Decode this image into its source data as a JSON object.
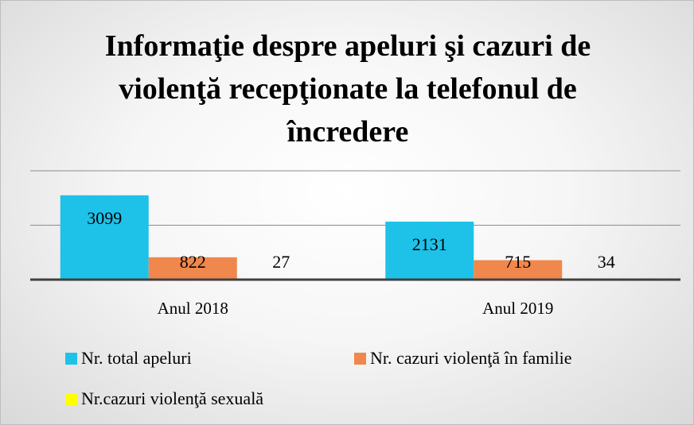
{
  "chart_data": {
    "type": "bar",
    "title": "Informaţie despre apeluri şi cazuri de violenţă recepţionate la telefonul de încredere",
    "categories": [
      "Anul 2018",
      "Anul 2019"
    ],
    "series": [
      {
        "name": "Nr. total apeluri",
        "color": "#1ec2e8",
        "values": [
          3099,
          2131
        ]
      },
      {
        "name": "Nr. cazuri violenţă în familie",
        "color": "#f0874c",
        "values": [
          822,
          715
        ]
      },
      {
        "name": "Nr.cazuri violenţă sexuală",
        "color": "#ffff00",
        "values": [
          27,
          34
        ]
      }
    ],
    "ylim": [
      0,
      4000
    ],
    "yticks": [
      0,
      2000,
      4000
    ],
    "grid": true,
    "legend": "bottom"
  }
}
